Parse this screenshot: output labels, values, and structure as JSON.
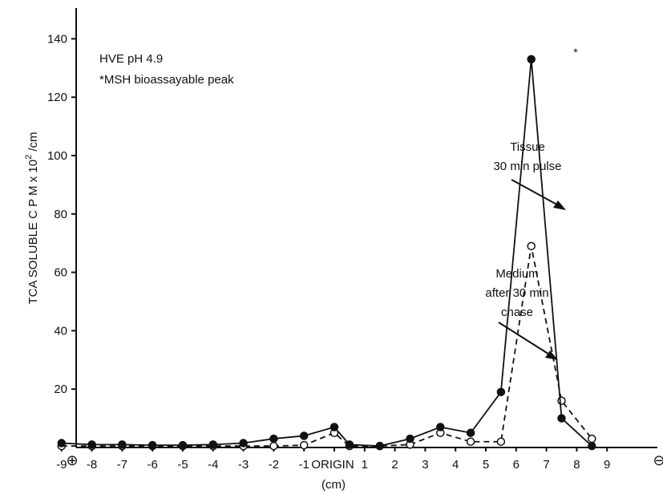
{
  "chart_data": {
    "type": "line",
    "xlabel": "(cm)",
    "ylabel": "TCA SOLUBLE C P M  x 10",
    "ylabel_sup": "2",
    "ylabel_suffix": " /cm",
    "ylim": [
      0,
      150
    ],
    "y_ticks": [
      "20",
      "40",
      "60",
      "80",
      "100",
      "120",
      "140"
    ],
    "x_ticks": [
      "-9",
      "-8",
      "-7",
      "-6",
      "-5",
      "-4",
      "-3",
      "-2",
      "-1",
      "ORIGIN",
      "1",
      "2",
      "3",
      "4",
      "5",
      "6",
      "7",
      "8",
      "9"
    ],
    "x_tick_values": [
      -9,
      -8,
      -7,
      -6,
      -5,
      -4,
      -3,
      -2,
      -1,
      0,
      1,
      2,
      3,
      4,
      5,
      6,
      7,
      8,
      9
    ],
    "x_end_left": "⊕",
    "x_end_right": "⊖",
    "series": [
      {
        "name": "Tissue 30 min pulse",
        "marker": "filled-circle",
        "line": "solid",
        "x": [
          -9,
          -8,
          -7,
          -6,
          -5,
          -4,
          -3,
          -2,
          -1,
          0,
          0.5,
          1.5,
          2.5,
          3.5,
          4.5,
          5.5,
          6.5,
          7.5,
          8.5
        ],
        "y": [
          1.5,
          1,
          1,
          0.8,
          0.8,
          1,
          1.5,
          3,
          4,
          7,
          1,
          0.5,
          3,
          7,
          5,
          19,
          133,
          10,
          0.5
        ]
      },
      {
        "name": "Medium after 30 min chase",
        "marker": "open-circle",
        "line": "dashed",
        "x": [
          -9,
          -8,
          -7,
          -6,
          -5,
          -4,
          -3,
          -2,
          -1,
          0,
          0.5,
          1.5,
          2.5,
          3.5,
          4.5,
          5.5,
          6.5,
          7.5,
          8.5
        ],
        "y": [
          0.5,
          0.5,
          0.5,
          0.5,
          0.5,
          0.5,
          0.5,
          0.5,
          0.8,
          5,
          0.5,
          0.5,
          1,
          5,
          2,
          2,
          69,
          16,
          3
        ]
      }
    ],
    "annotations": {
      "title_line1": "HVE pH 4.9",
      "title_line2": "*MSH bioassayable peak",
      "tissue_line1": "Tissue",
      "tissue_line2": "30 min pulse",
      "medium_line1": "Medium",
      "medium_line2": "after 30 min",
      "medium_line3": "chase",
      "peak_marker": "*"
    },
    "grid": false,
    "legend": "none"
  }
}
